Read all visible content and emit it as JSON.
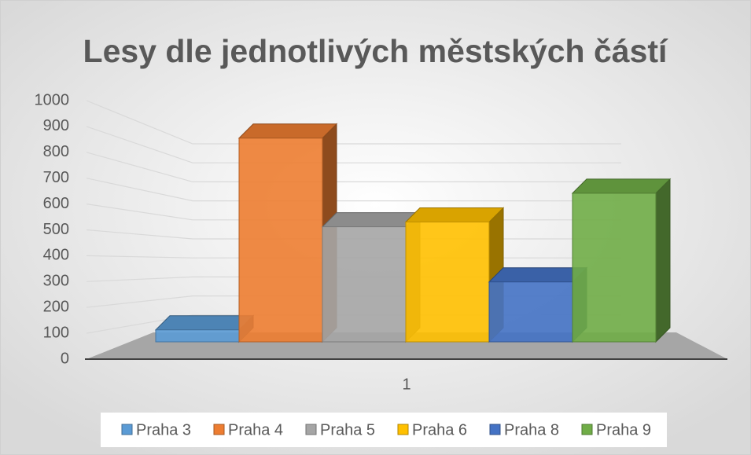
{
  "chart_data": {
    "type": "bar3d",
    "title": "Lesy dle jednotlivých městských částí",
    "categories": [
      "1"
    ],
    "series": [
      {
        "name": "Praha 3",
        "color": "#5b9bd5",
        "values": [
          50
        ]
      },
      {
        "name": "Praha 4",
        "color": "#ed7d31",
        "values": [
          850
        ]
      },
      {
        "name": "Praha 5",
        "color": "#a5a5a5",
        "values": [
          480
        ]
      },
      {
        "name": "Praha 6",
        "color": "#ffc000",
        "values": [
          500
        ]
      },
      {
        "name": "Praha 8",
        "color": "#4472c4",
        "values": [
          250
        ]
      },
      {
        "name": "Praha 9",
        "color": "#70ad47",
        "values": [
          620
        ]
      }
    ],
    "ylim": [
      0,
      1000
    ],
    "yticks": [
      0,
      100,
      200,
      300,
      400,
      500,
      600,
      700,
      800,
      900,
      1000
    ],
    "grid": true,
    "legend": "bottom"
  }
}
